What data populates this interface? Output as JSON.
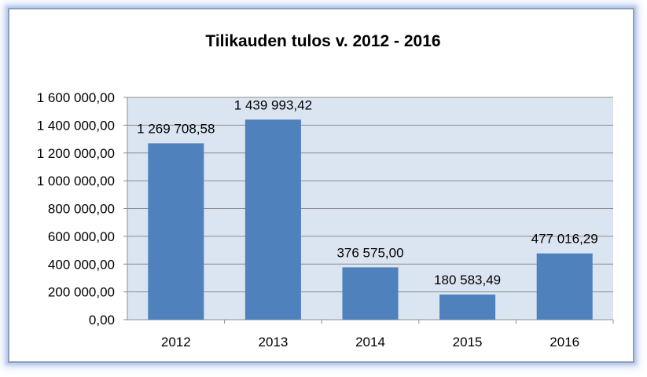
{
  "chart_data": {
    "type": "bar",
    "title": "Tilikauden tulos v. 2012 - 2016",
    "xlabel": "",
    "ylabel": "",
    "categories": [
      "2012",
      "2013",
      "2014",
      "2015",
      "2016"
    ],
    "values": [
      1269708.58,
      1439993.42,
      376575.0,
      180583.49,
      477016.29
    ],
    "data_labels": [
      "1 269 708,58",
      "1 439 993,42",
      "376 575,00",
      "180 583,49",
      "477 016,29"
    ],
    "ylim": [
      0,
      1600000
    ],
    "y_ticks": [
      0,
      200000,
      400000,
      600000,
      800000,
      1000000,
      1200000,
      1400000,
      1600000
    ],
    "y_tick_labels": [
      "0,00",
      "200 000,00",
      "400 000,00",
      "600 000,00",
      "800 000,00",
      "1 000 000,00",
      "1 200 000,00",
      "1 400 000,00",
      "1 600 000,00"
    ],
    "grid": true,
    "legend": "none",
    "colors": {
      "bar": "#4f81bd",
      "plot_background": "#dbe5f1",
      "gridline": "#8c8c8c",
      "frame_border": "#8fa0bd"
    }
  }
}
